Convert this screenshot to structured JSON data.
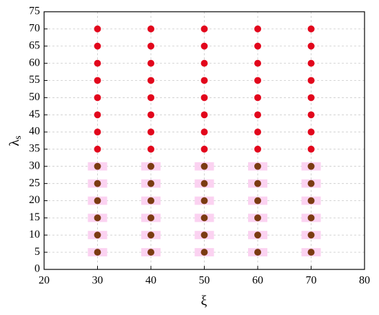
{
  "chart_data": {
    "type": "scatter",
    "xlabel": "ξ",
    "ylabel": "λ",
    "ylabel_subscript": "s",
    "xlim": [
      20,
      80
    ],
    "xticks": [
      20,
      30,
      40,
      50,
      60,
      70,
      80
    ],
    "ylim": [
      0,
      75
    ],
    "yticks": [
      0,
      5,
      10,
      15,
      20,
      25,
      30,
      35,
      40,
      45,
      50,
      55,
      60,
      65,
      70,
      75
    ],
    "grid": true,
    "series": [
      {
        "color": "#e2061c",
        "x": [
          30,
          30,
          30,
          30,
          30,
          30,
          30,
          30,
          40,
          40,
          40,
          40,
          40,
          40,
          40,
          40,
          50,
          50,
          50,
          50,
          50,
          50,
          50,
          50,
          60,
          60,
          60,
          60,
          60,
          60,
          60,
          60,
          70,
          70,
          70,
          70,
          70,
          70,
          70,
          70
        ],
        "values": [
          35,
          40,
          45,
          50,
          55,
          60,
          65,
          70,
          35,
          40,
          45,
          50,
          55,
          60,
          65,
          70,
          35,
          40,
          45,
          50,
          55,
          60,
          65,
          70,
          35,
          40,
          45,
          50,
          55,
          60,
          65,
          70,
          35,
          40,
          45,
          50,
          55,
          60,
          65,
          70
        ]
      },
      {
        "color": "#7b3b12",
        "background_color": "#fbd2f1",
        "x": [
          30,
          30,
          30,
          30,
          30,
          30,
          40,
          40,
          40,
          40,
          40,
          40,
          50,
          50,
          50,
          50,
          50,
          50,
          60,
          60,
          60,
          60,
          60,
          60,
          70,
          70,
          70,
          70,
          70,
          70
        ],
        "values": [
          5,
          10,
          15,
          20,
          25,
          30,
          5,
          10,
          15,
          20,
          25,
          30,
          5,
          10,
          15,
          20,
          25,
          30,
          5,
          10,
          15,
          20,
          25,
          30,
          5,
          10,
          15,
          20,
          25,
          30
        ]
      }
    ]
  }
}
